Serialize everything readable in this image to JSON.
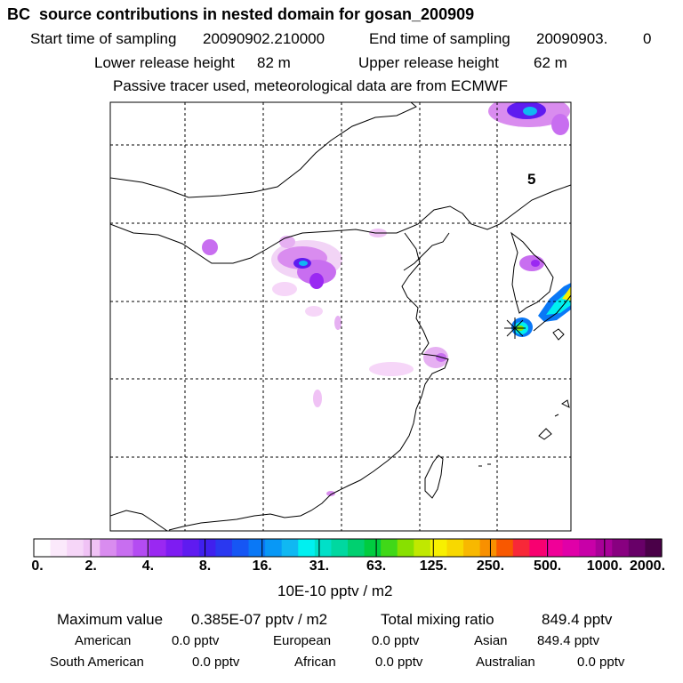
{
  "header": {
    "title": "BC  source contributions in nested domain for gosan_200909",
    "start_label": "Start time of sampling",
    "start_value": "20090902.210000",
    "end_label": "End time of sampling",
    "end_value": "20090903.",
    "end_extra": "0",
    "lower_label": "Lower release height",
    "lower_value": "82 m",
    "upper_label": "Upper release height",
    "upper_value": "62 m",
    "note": "Passive tracer used, meteorological data are from ECMWF"
  },
  "map": {
    "contour_label": "5"
  },
  "colorbar": {
    "ticks": [
      "0.",
      "2.",
      "4.",
      "8.",
      "16.",
      "31.",
      "63.",
      "125.",
      "250.",
      "500.",
      "1000.",
      "2000."
    ],
    "unit_label": "10E-10 pptv / m2",
    "colors": [
      "#ffffff",
      "#fbe9fb",
      "#f6d6f8",
      "#f0c2f5",
      "#d98cef",
      "#c86ef0",
      "#b44cf2",
      "#9a28f2",
      "#7e1cf2",
      "#5f1bf0",
      "#4020ee",
      "#2a38f0",
      "#1656f4",
      "#0a78f6",
      "#0898f6",
      "#10b8f2",
      "#00f0f0",
      "#00e0c8",
      "#00d8a0",
      "#00d070",
      "#00cc40",
      "#40d818",
      "#88e000",
      "#c0e800",
      "#f8f000",
      "#f8d800",
      "#f8b800",
      "#f89000",
      "#f85800",
      "#f82838",
      "#f80070",
      "#f00098",
      "#e000a8",
      "#c800a8",
      "#a80098",
      "#880080",
      "#680068",
      "#4a0048"
    ]
  },
  "stats": {
    "max_label": "Maximum value",
    "max_value": "0.385E-07 pptv / m2",
    "total_label": "Total mixing ratio",
    "total_value": "849.4 pptv",
    "american_label": "American",
    "american_value": "0.0 pptv",
    "european_label": "European",
    "european_value": "0.0 pptv",
    "asian_label": "Asian",
    "asian_value": "849.4 pptv",
    "south_american_label": "South American",
    "south_american_value": "0.0 pptv",
    "african_label": "African",
    "african_value": "0.0 pptv",
    "australian_label": "Australian",
    "australian_value": "0.0 pptv"
  }
}
